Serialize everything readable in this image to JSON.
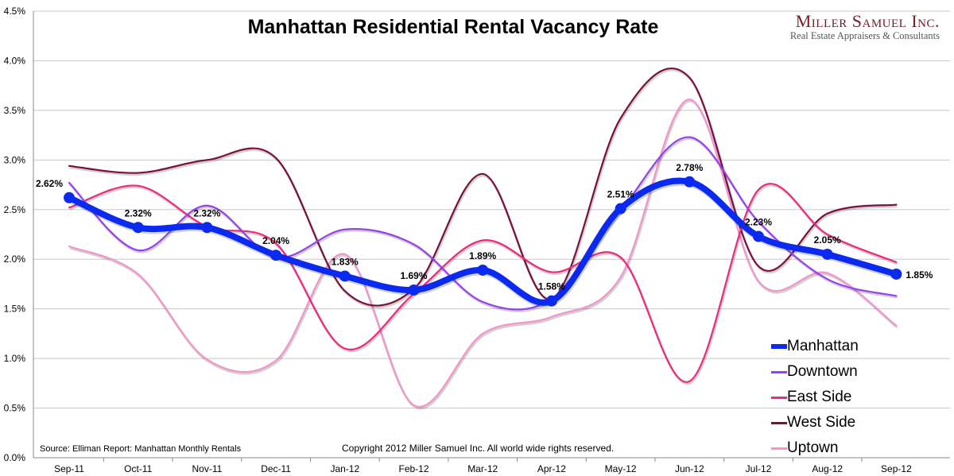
{
  "chart_data": {
    "type": "line",
    "title": "Manhattan Residential Rental Vacancy Rate",
    "xlabel": "",
    "ylabel": "",
    "categories": [
      "Sep-11",
      "Oct-11",
      "Nov-11",
      "Dec-11",
      "Jan-12",
      "Feb-12",
      "Mar-12",
      "Apr-12",
      "May-12",
      "Jun-12",
      "Jul-12",
      "Aug-12",
      "Sep-12"
    ],
    "ylim": [
      0,
      4.5
    ],
    "yticks": [
      "0.0%",
      "0.5%",
      "1.0%",
      "1.5%",
      "2.0%",
      "2.5%",
      "3.0%",
      "3.5%",
      "4.0%",
      "4.5%"
    ],
    "grid": true,
    "legend_position": "bottom-right",
    "series": [
      {
        "name": "Manhattan",
        "color": "#0a2af2",
        "values": [
          2.62,
          2.32,
          2.32,
          2.04,
          1.83,
          1.69,
          1.89,
          1.58,
          2.51,
          2.78,
          2.23,
          2.05,
          1.85
        ],
        "labels": [
          "2.62%",
          "2.32%",
          "2.32%",
          "2.04%",
          "1.83%",
          "1.69%",
          "1.89%",
          "1.58%",
          "2.51%",
          "2.78%",
          "2.23%",
          "2.05%",
          "1.85%"
        ]
      },
      {
        "name": "Downtown",
        "color": "#9a3ff0",
        "values": [
          2.77,
          2.09,
          2.54,
          2.02,
          2.3,
          2.15,
          1.57,
          1.6,
          2.49,
          3.23,
          2.38,
          1.8,
          1.63
        ]
      },
      {
        "name": "East Side",
        "color": "#f0287e",
        "values": [
          2.52,
          2.74,
          2.33,
          2.16,
          1.1,
          1.65,
          2.19,
          1.87,
          2.02,
          0.77,
          2.7,
          2.25,
          1.97
        ]
      },
      {
        "name": "West Side",
        "color": "#7a1040",
        "values": [
          2.94,
          2.87,
          3.0,
          3.02,
          1.68,
          1.7,
          2.86,
          1.6,
          3.42,
          3.83,
          1.93,
          2.46,
          2.55
        ]
      },
      {
        "name": "Uptown",
        "color": "#f394cc",
        "values": [
          2.13,
          1.85,
          0.99,
          0.98,
          2.05,
          0.53,
          1.25,
          1.42,
          1.82,
          3.61,
          1.78,
          1.86,
          1.33
        ]
      }
    ],
    "source": "Source: Elliman Report: Manhattan Monthly Rentals",
    "copyright": "Copyright 2012 Miller Samuel Inc.  All world wide rights reserved."
  },
  "logo": {
    "name": "Miller Samuel Inc.",
    "tagline": "Real Estate Appraisers & Consultants"
  }
}
